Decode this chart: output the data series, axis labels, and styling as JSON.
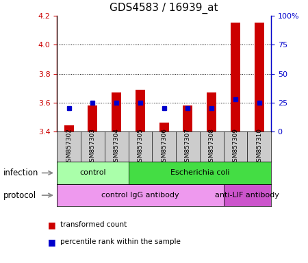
{
  "title": "GDS4583 / 16939_at",
  "samples": [
    "GSM857302",
    "GSM857303",
    "GSM857304",
    "GSM857305",
    "GSM857306",
    "GSM857307",
    "GSM857308",
    "GSM857309",
    "GSM857310"
  ],
  "red_values": [
    3.443,
    3.582,
    3.672,
    3.69,
    3.462,
    3.578,
    3.672,
    4.155,
    4.155
  ],
  "blue_values": [
    20,
    25,
    25,
    25,
    20,
    20,
    20,
    28,
    25
  ],
  "ylim_left": [
    3.4,
    4.2
  ],
  "ylim_right": [
    0,
    100
  ],
  "yticks_left": [
    3.4,
    3.6,
    3.8,
    4.0,
    4.2
  ],
  "yticks_right": [
    0,
    25,
    50,
    75,
    100
  ],
  "ytick_labels_right": [
    "0",
    "25",
    "50",
    "75",
    "100%"
  ],
  "bar_bottom": 3.4,
  "bar_color": "#cc0000",
  "dot_color": "#0000cc",
  "infection_groups": [
    {
      "label": "control",
      "start": 0,
      "end": 3,
      "color": "#aaffaa"
    },
    {
      "label": "Escherichia coli",
      "start": 3,
      "end": 9,
      "color": "#44dd44"
    }
  ],
  "protocol_groups": [
    {
      "label": "control IgG antibody",
      "start": 0,
      "end": 7,
      "color": "#ee99ee"
    },
    {
      "label": "anti-LIF antibody",
      "start": 7,
      "end": 9,
      "color": "#cc55cc"
    }
  ],
  "infection_label": "infection",
  "protocol_label": "protocol",
  "legend_red": "transformed count",
  "legend_blue": "percentile rank within the sample",
  "sample_bg_color": "#cccccc",
  "title_fontsize": 11,
  "tick_fontsize": 8,
  "label_fontsize": 8.5
}
